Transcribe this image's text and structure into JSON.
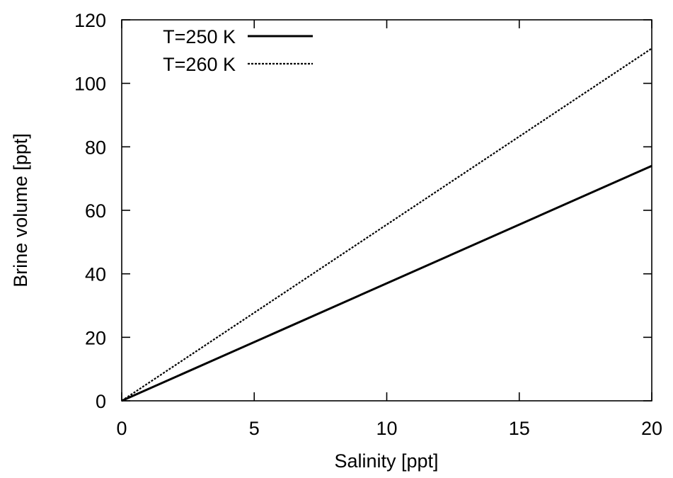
{
  "chart_data": {
    "type": "line",
    "title": "",
    "xlabel": "Salinity [ppt]",
    "ylabel": "Brine volume [ppt]",
    "xlim": [
      0,
      20
    ],
    "ylim": [
      0,
      120
    ],
    "xticks": [
      0,
      5,
      10,
      15,
      20
    ],
    "yticks": [
      0,
      20,
      40,
      60,
      80,
      100,
      120
    ],
    "grid": false,
    "legend_position": "top-left",
    "series": [
      {
        "name": "T=250 K",
        "style": "solid",
        "color": "#000000",
        "x": [
          0,
          20
        ],
        "y": [
          0,
          74
        ]
      },
      {
        "name": "T=260 K",
        "style": "dotted",
        "color": "#000000",
        "x": [
          0,
          20
        ],
        "y": [
          0,
          111
        ]
      }
    ]
  }
}
